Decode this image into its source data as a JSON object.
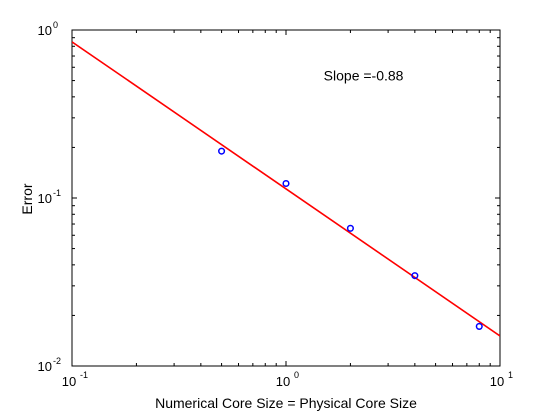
{
  "chart_data": {
    "type": "scatter",
    "title": "",
    "xlabel": "Numerical Core Size = Physical Core Size",
    "ylabel": "Error",
    "xscale": "log",
    "yscale": "log",
    "xlim": [
      0.1,
      10
    ],
    "ylim": [
      0.01,
      1
    ],
    "grid": false,
    "x_ticks": [
      {
        "base": "10",
        "exp": "-1",
        "value": 0.1
      },
      {
        "base": "10",
        "exp": "0",
        "value": 1
      },
      {
        "base": "10",
        "exp": "1",
        "value": 10
      }
    ],
    "y_ticks": [
      {
        "base": "10",
        "exp": "-2",
        "value": 0.01
      },
      {
        "base": "10",
        "exp": "-1",
        "value": 0.1
      },
      {
        "base": "10",
        "exp": "0",
        "value": 1
      }
    ],
    "series": [
      {
        "kind": "markers",
        "marker": "circle",
        "color": "#0000ff",
        "x": [
          0.5,
          1,
          2,
          4,
          8
        ],
        "y": [
          0.19,
          0.122,
          0.066,
          0.0345,
          0.0172
        ]
      },
      {
        "kind": "fit-line",
        "color": "#ff0000",
        "x": [
          0.1,
          10
        ],
        "y": [
          0.85,
          0.0151
        ]
      }
    ],
    "annotations": [
      {
        "text": "Slope =-0.88",
        "x": 1.5,
        "y": 0.5
      }
    ]
  }
}
